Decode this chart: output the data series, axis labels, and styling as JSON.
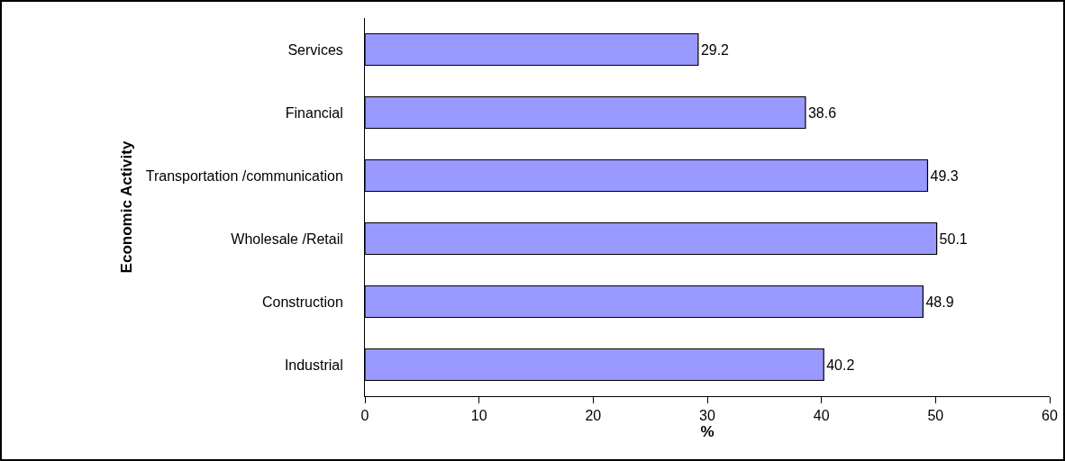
{
  "chart_data": {
    "type": "bar",
    "orientation": "horizontal",
    "xlabel": "%",
    "ylabel": "Economic Activity",
    "categories": [
      "Services",
      "Financial",
      "Transportation /communication",
      "Wholesale /Retail",
      "Construction",
      "Industrial"
    ],
    "values": [
      29.2,
      38.6,
      49.3,
      50.1,
      48.9,
      40.2
    ],
    "color": "#9999ff",
    "data_labels": true,
    "xlim": [
      0,
      60
    ],
    "xticks": [
      0,
      10,
      20,
      30,
      40,
      50,
      60
    ],
    "grid": false,
    "legend": false
  }
}
